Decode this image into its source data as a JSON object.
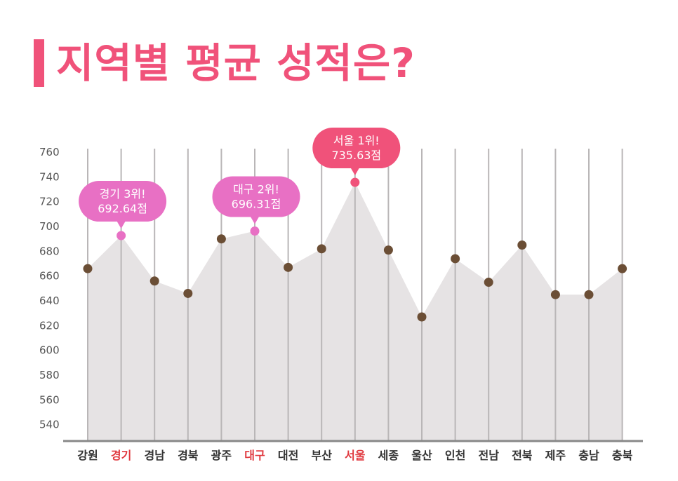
{
  "title": "지역별 평균 성적은?",
  "colors": {
    "accent": "#f0527a",
    "area": "#e6e3e4",
    "point": "#6b4e35",
    "highlight_point": "#e870c4",
    "top_point": "#f0527a",
    "highlight_label": "#e0393f"
  },
  "chart_data": {
    "type": "area",
    "title": "지역별 평균 성적은?",
    "xlabel": "",
    "ylabel": "",
    "ylim": [
      530,
      760
    ],
    "yticks": [
      540,
      560,
      580,
      600,
      620,
      640,
      660,
      680,
      700,
      720,
      740,
      760
    ],
    "categories": [
      "강원",
      "경기",
      "경남",
      "경북",
      "광주",
      "대구",
      "대전",
      "부산",
      "서울",
      "세종",
      "울산",
      "인천",
      "전남",
      "전북",
      "제주",
      "충남",
      "충북"
    ],
    "values": [
      666,
      692.64,
      656,
      646,
      690,
      696.31,
      667,
      682,
      735.63,
      681,
      627,
      674,
      655,
      685,
      645,
      645,
      666
    ],
    "highlighted": [
      "경기",
      "대구",
      "서울"
    ],
    "callouts": [
      {
        "category": "경기",
        "line1": "경기 3위!",
        "line2": "692.64점",
        "color": "#e870c4"
      },
      {
        "category": "대구",
        "line1": "대구 2위!",
        "line2": "696.31점",
        "color": "#e870c4"
      },
      {
        "category": "서울",
        "line1": "서울 1위!",
        "line2": "735.63점",
        "color": "#f0527a"
      }
    ]
  }
}
